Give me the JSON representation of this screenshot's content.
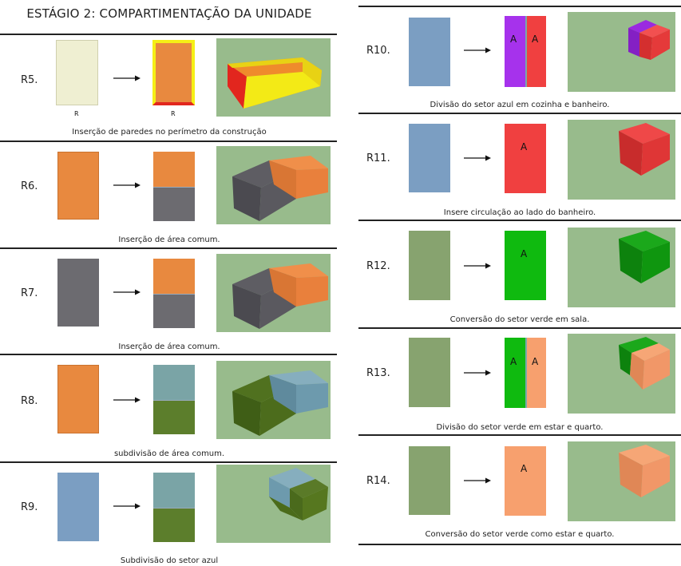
{
  "title": "ESTÁGIO 2: COMPARTIMENTAÇÃO DA UNIDADE",
  "rules": {
    "r5": {
      "label": "R5.",
      "caption": "Inserção de paredes no perímetro da construção",
      "base_label_before": "R",
      "base_label_after": "R"
    },
    "r6": {
      "label": "R6.",
      "caption": "Inserção de área comum."
    },
    "r7": {
      "label": "R7.",
      "caption": "Inserção de área comum."
    },
    "r8": {
      "label": "R8.",
      "caption": "subdivisão de área comum."
    },
    "r9": {
      "label": "R9.",
      "caption": "Subdivisão do setor azul"
    },
    "r10": {
      "label": "R10.",
      "caption": "Divisão do setor azul em cozinha e banheiro.",
      "tag_left": "A",
      "tag_right": "A"
    },
    "r11": {
      "label": "R11.",
      "caption": "Insere circulação ao lado do banheiro.",
      "tag": "A"
    },
    "r12": {
      "label": "R12.",
      "caption": "Conversão do setor verde em sala.",
      "tag": "A"
    },
    "r13": {
      "label": "R13.",
      "caption": "Divisão do setor verde em estar e quarto.",
      "tag_left": "A",
      "tag_right": "A"
    },
    "r14": {
      "label": "R14.",
      "caption": "Conversão do setor verde como estar e quarto.",
      "tag": "A"
    }
  },
  "colors": {
    "cream": "#efefd2",
    "orange": "#e8893f",
    "gray": "#6c6b70",
    "teal": "#7aa4a6",
    "olive": "#5c7e2c",
    "blue": "#7b9ec2",
    "purple": "#a632ec",
    "red": "#f04040",
    "green": "#0fba0f",
    "sage": "#87a36f",
    "salmon": "#f7a06e",
    "thumb_bg": "#98bb8c",
    "yellow": "#f5ef16",
    "wall_red": "#e2261e"
  }
}
